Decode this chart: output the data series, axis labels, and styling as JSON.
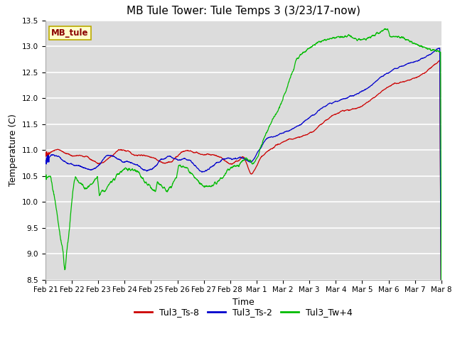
{
  "title": "MB Tule Tower: Tule Temps 3 (3/23/17-now)",
  "xlabel": "Time",
  "ylabel": "Temperature (C)",
  "ylim": [
    8.5,
    13.5
  ],
  "background_color": "#dcdcdc",
  "grid_color": "#ffffff",
  "fig_background": "#ffffff",
  "tick_labels": [
    "Feb 21",
    "Feb 22",
    "Feb 23",
    "Feb 24",
    "Feb 25",
    "Feb 26",
    "Feb 27",
    "Feb 28",
    "Mar 1",
    "Mar 2",
    "Mar 3",
    "Mar 4",
    "Mar 5",
    "Mar 6",
    "Mar 7",
    "Mar 8"
  ],
  "legend_labels": [
    "Tul3_Ts-8",
    "Tul3_Ts-2",
    "Tul3_Tw+4"
  ],
  "legend_colors": [
    "#cc0000",
    "#0000cc",
    "#00bb00"
  ],
  "station_label": "MB_tule",
  "red_color": "#cc0000",
  "blue_color": "#0000cc",
  "green_color": "#00bb00",
  "title_fontsize": 11,
  "axis_fontsize": 9,
  "tick_fontsize": 7.5,
  "legend_fontsize": 9
}
